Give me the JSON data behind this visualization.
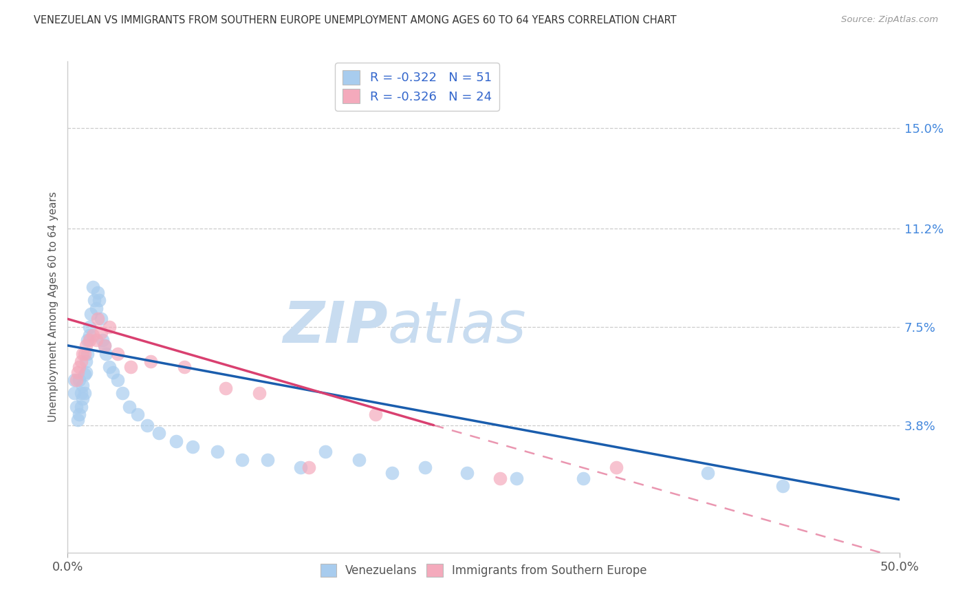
{
  "title": "VENEZUELAN VS IMMIGRANTS FROM SOUTHERN EUROPE UNEMPLOYMENT AMONG AGES 60 TO 64 YEARS CORRELATION CHART",
  "source": "Source: ZipAtlas.com",
  "ylabel": "Unemployment Among Ages 60 to 64 years",
  "ytick_labels": [
    "15.0%",
    "11.2%",
    "7.5%",
    "3.8%"
  ],
  "ytick_values": [
    0.15,
    0.112,
    0.075,
    0.038
  ],
  "xlim": [
    0.0,
    0.5
  ],
  "ylim": [
    -0.01,
    0.175
  ],
  "venezuelan_R": "-0.322",
  "venezuelan_N": "51",
  "southern_europe_R": "-0.326",
  "southern_europe_N": "24",
  "venezuelan_color": "#A8CCEE",
  "southern_europe_color": "#F4AABC",
  "trendline_venezuelan_color": "#1A5DAD",
  "trendline_southern_europe_color": "#D94070",
  "watermark_zip_color": "#C8DCF0",
  "watermark_atlas_color": "#C8DCF0",
  "venezuelan_x": [
    0.004,
    0.004,
    0.005,
    0.006,
    0.007,
    0.007,
    0.008,
    0.008,
    0.009,
    0.009,
    0.01,
    0.01,
    0.011,
    0.011,
    0.012,
    0.012,
    0.013,
    0.013,
    0.014,
    0.015,
    0.016,
    0.017,
    0.018,
    0.019,
    0.02,
    0.021,
    0.022,
    0.023,
    0.025,
    0.027,
    0.03,
    0.033,
    0.037,
    0.042,
    0.048,
    0.055,
    0.065,
    0.075,
    0.09,
    0.105,
    0.12,
    0.14,
    0.155,
    0.175,
    0.195,
    0.215,
    0.24,
    0.27,
    0.31,
    0.385,
    0.43
  ],
  "venezuelan_y": [
    0.055,
    0.05,
    0.045,
    0.04,
    0.042,
    0.055,
    0.045,
    0.05,
    0.048,
    0.053,
    0.05,
    0.057,
    0.058,
    0.062,
    0.065,
    0.07,
    0.072,
    0.075,
    0.08,
    0.09,
    0.085,
    0.082,
    0.088,
    0.085,
    0.078,
    0.07,
    0.068,
    0.065,
    0.06,
    0.058,
    0.055,
    0.05,
    0.045,
    0.042,
    0.038,
    0.035,
    0.032,
    0.03,
    0.028,
    0.025,
    0.025,
    0.022,
    0.028,
    0.025,
    0.02,
    0.022,
    0.02,
    0.018,
    0.018,
    0.02,
    0.015
  ],
  "southern_europe_x": [
    0.005,
    0.006,
    0.007,
    0.008,
    0.009,
    0.01,
    0.011,
    0.013,
    0.015,
    0.017,
    0.018,
    0.02,
    0.022,
    0.025,
    0.03,
    0.038,
    0.05,
    0.07,
    0.095,
    0.115,
    0.145,
    0.185,
    0.26,
    0.33
  ],
  "southern_europe_y": [
    0.055,
    0.058,
    0.06,
    0.062,
    0.065,
    0.065,
    0.068,
    0.07,
    0.072,
    0.07,
    0.078,
    0.073,
    0.068,
    0.075,
    0.065,
    0.06,
    0.062,
    0.06,
    0.052,
    0.05,
    0.022,
    0.042,
    0.018,
    0.022
  ],
  "trendline_ven_x0": 0.0,
  "trendline_ven_y0": 0.068,
  "trendline_ven_x1": 0.5,
  "trendline_ven_y1": 0.01,
  "trendline_se_solid_x0": 0.0,
  "trendline_se_solid_y0": 0.078,
  "trendline_se_solid_x1": 0.22,
  "trendline_se_solid_y1": 0.038,
  "trendline_se_dash_x0": 0.22,
  "trendline_se_dash_y0": 0.038,
  "trendline_se_dash_x1": 0.5,
  "trendline_se_dash_y1": -0.012
}
